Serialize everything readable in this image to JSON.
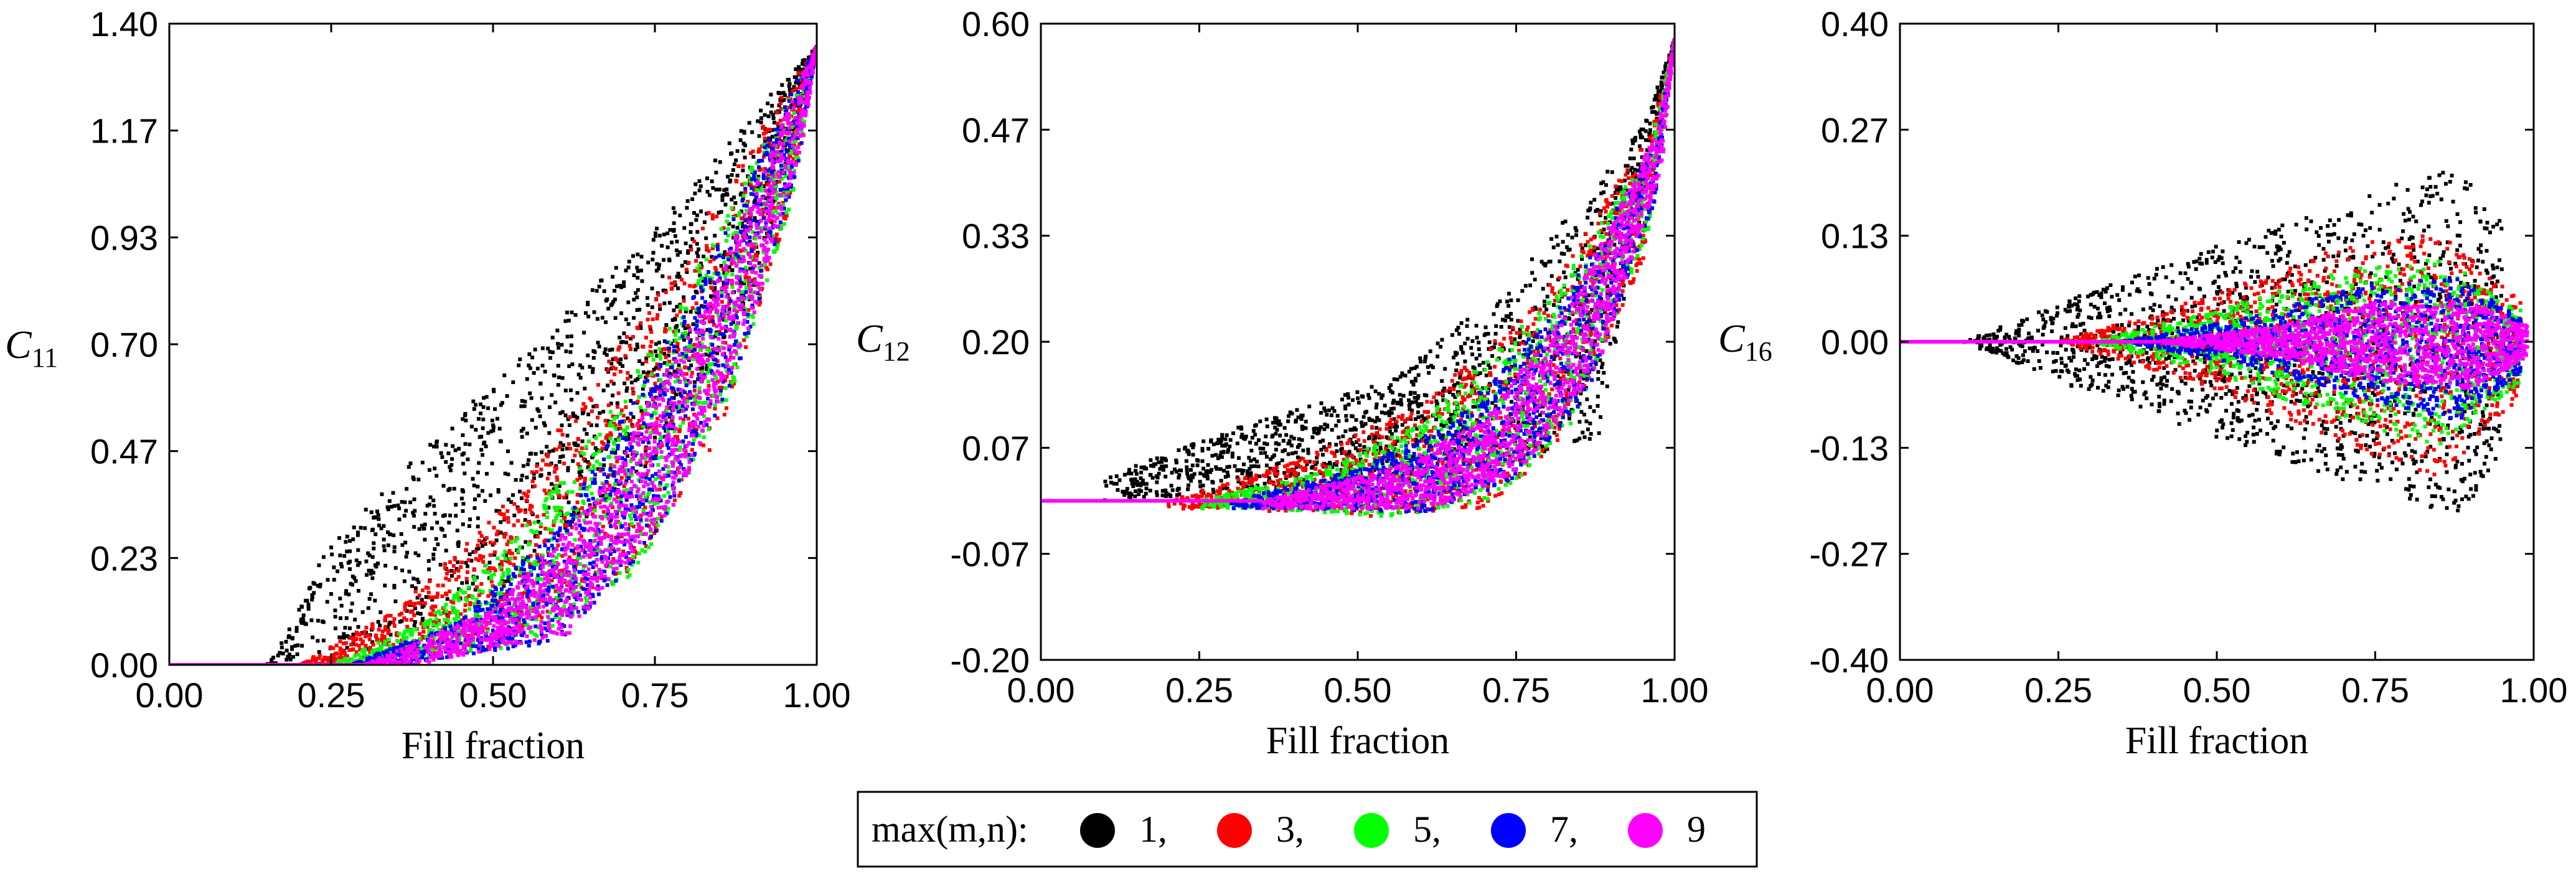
{
  "chart_data": [
    {
      "type": "scatter",
      "id": "c11",
      "ylabel": "C",
      "ylabel_sub": "11",
      "xlabel": "Fill fraction",
      "xlim": [
        0,
        1
      ],
      "ylim": [
        0,
        1.4
      ],
      "xticks": [
        "0.00",
        "0.25",
        "0.50",
        "0.75",
        "1.00"
      ],
      "yticks": [
        "0.00",
        "0.23",
        "0.47",
        "0.70",
        "0.93",
        "1.17",
        "1.40"
      ],
      "grid": false,
      "series": [
        {
          "name": "1",
          "upper": [
            [
              0.15,
              0.0
            ],
            [
              0.25,
              0.27
            ],
            [
              0.5,
              0.62
            ],
            [
              0.75,
              0.95
            ],
            [
              0.95,
              1.28
            ],
            [
              1.0,
              1.35
            ]
          ],
          "lower": [
            [
              0.15,
              0.0
            ],
            [
              0.3,
              0.03
            ],
            [
              0.5,
              0.15
            ],
            [
              0.75,
              0.45
            ],
            [
              0.9,
              0.8
            ],
            [
              1.0,
              1.35
            ]
          ]
        },
        {
          "name": "3",
          "upper": [
            [
              0.2,
              0.0
            ],
            [
              0.35,
              0.12
            ],
            [
              0.5,
              0.32
            ],
            [
              0.75,
              0.8
            ],
            [
              0.95,
              1.25
            ],
            [
              1.0,
              1.35
            ]
          ],
          "lower": [
            [
              0.25,
              0.0
            ],
            [
              0.5,
              0.04
            ],
            [
              0.7,
              0.18
            ],
            [
              0.85,
              0.5
            ],
            [
              0.95,
              0.95
            ],
            [
              1.0,
              1.35
            ]
          ]
        },
        {
          "name": "5",
          "upper": [
            [
              0.25,
              0.0
            ],
            [
              0.4,
              0.1
            ],
            [
              0.55,
              0.3
            ],
            [
              0.75,
              0.7
            ],
            [
              0.95,
              1.22
            ],
            [
              1.0,
              1.35
            ]
          ],
          "lower": [
            [
              0.3,
              0.0
            ],
            [
              0.55,
              0.04
            ],
            [
              0.72,
              0.2
            ],
            [
              0.86,
              0.55
            ],
            [
              0.96,
              1.0
            ],
            [
              1.0,
              1.35
            ]
          ]
        },
        {
          "name": "7",
          "upper": [
            [
              0.28,
              0.0
            ],
            [
              0.45,
              0.1
            ],
            [
              0.6,
              0.3
            ],
            [
              0.8,
              0.78
            ],
            [
              0.96,
              1.25
            ],
            [
              1.0,
              1.35
            ]
          ],
          "lower": [
            [
              0.35,
              0.0
            ],
            [
              0.6,
              0.05
            ],
            [
              0.74,
              0.25
            ],
            [
              0.88,
              0.65
            ],
            [
              0.97,
              1.08
            ],
            [
              1.0,
              1.35
            ]
          ]
        },
        {
          "name": "9",
          "upper": [
            [
              0.3,
              0.0
            ],
            [
              0.5,
              0.12
            ],
            [
              0.65,
              0.35
            ],
            [
              0.85,
              0.85
            ],
            [
              0.97,
              1.27
            ],
            [
              1.0,
              1.35
            ]
          ],
          "lower": [
            [
              0.38,
              0.0
            ],
            [
              0.62,
              0.07
            ],
            [
              0.78,
              0.35
            ],
            [
              0.9,
              0.75
            ],
            [
              0.98,
              1.15
            ],
            [
              1.0,
              1.35
            ]
          ]
        }
      ]
    },
    {
      "type": "scatter",
      "id": "c12",
      "ylabel": "C",
      "ylabel_sub": "12",
      "xlabel": "Fill fraction",
      "xlim": [
        0,
        1
      ],
      "ylim": [
        -0.2,
        0.6
      ],
      "xticks": [
        "0.00",
        "0.25",
        "0.50",
        "0.75",
        "1.00"
      ],
      "yticks": [
        "-0.20",
        "-0.07",
        "0.07",
        "0.20",
        "0.33",
        "0.47",
        "0.60"
      ],
      "grid": false,
      "series": [
        {
          "name": "1",
          "upper": [
            [
              0.1,
              0.03
            ],
            [
              0.3,
              0.09
            ],
            [
              0.55,
              0.15
            ],
            [
              0.75,
              0.28
            ],
            [
              0.95,
              0.47
            ],
            [
              1.0,
              0.58
            ]
          ],
          "lower": [
            [
              0.1,
              0.0
            ],
            [
              0.3,
              0.01
            ],
            [
              0.55,
              0.03
            ],
            [
              0.75,
              0.05
            ],
            [
              0.88,
              0.08
            ],
            [
              1.0,
              0.58
            ]
          ]
        },
        {
          "name": "3",
          "upper": [
            [
              0.2,
              0.0
            ],
            [
              0.4,
              0.05
            ],
            [
              0.6,
              0.12
            ],
            [
              0.8,
              0.27
            ],
            [
              0.96,
              0.46
            ],
            [
              1.0,
              0.58
            ]
          ],
          "lower": [
            [
              0.3,
              -0.01
            ],
            [
              0.5,
              -0.02
            ],
            [
              0.7,
              -0.01
            ],
            [
              0.82,
              0.07
            ],
            [
              0.95,
              0.3
            ],
            [
              1.0,
              0.58
            ]
          ]
        },
        {
          "name": "5",
          "upper": [
            [
              0.25,
              0.0
            ],
            [
              0.45,
              0.04
            ],
            [
              0.6,
              0.1
            ],
            [
              0.8,
              0.25
            ],
            [
              0.96,
              0.44
            ],
            [
              1.0,
              0.58
            ]
          ],
          "lower": [
            [
              0.35,
              -0.01
            ],
            [
              0.55,
              -0.02
            ],
            [
              0.72,
              0.0
            ],
            [
              0.84,
              0.1
            ],
            [
              0.96,
              0.34
            ],
            [
              1.0,
              0.58
            ]
          ]
        },
        {
          "name": "7",
          "upper": [
            [
              0.3,
              0.0
            ],
            [
              0.5,
              0.04
            ],
            [
              0.65,
              0.1
            ],
            [
              0.82,
              0.25
            ],
            [
              0.97,
              0.45
            ],
            [
              1.0,
              0.58
            ]
          ],
          "lower": [
            [
              0.4,
              -0.01
            ],
            [
              0.6,
              -0.015
            ],
            [
              0.74,
              0.02
            ],
            [
              0.86,
              0.13
            ],
            [
              0.97,
              0.38
            ],
            [
              1.0,
              0.58
            ]
          ]
        },
        {
          "name": "9",
          "upper": [
            [
              0.35,
              0.0
            ],
            [
              0.55,
              0.04
            ],
            [
              0.7,
              0.1
            ],
            [
              0.85,
              0.27
            ],
            [
              0.97,
              0.46
            ],
            [
              1.0,
              0.58
            ]
          ],
          "lower": [
            [
              0.45,
              -0.01
            ],
            [
              0.62,
              -0.01
            ],
            [
              0.76,
              0.04
            ],
            [
              0.88,
              0.17
            ],
            [
              0.98,
              0.42
            ],
            [
              1.0,
              0.58
            ]
          ]
        }
      ]
    },
    {
      "type": "scatter",
      "id": "c16",
      "ylabel": "C",
      "ylabel_sub": "16",
      "xlabel": "Fill fraction",
      "xlim": [
        0,
        1
      ],
      "ylim": [
        -0.4,
        0.4
      ],
      "xticks": [
        "0.00",
        "0.25",
        "0.50",
        "0.75",
        "1.00"
      ],
      "yticks": [
        "-0.40",
        "-0.27",
        "-0.13",
        "0.00",
        "0.13",
        "0.27",
        "0.40"
      ],
      "grid": false,
      "series": [
        {
          "name": "1",
          "upper": [
            [
              0.1,
              0.0
            ],
            [
              0.25,
              0.05
            ],
            [
              0.5,
              0.12
            ],
            [
              0.75,
              0.19
            ],
            [
              0.88,
              0.22
            ],
            [
              0.95,
              0.15
            ]
          ],
          "lower": [
            [
              0.1,
              0.0
            ],
            [
              0.25,
              -0.05
            ],
            [
              0.5,
              -0.12
            ],
            [
              0.75,
              -0.19
            ],
            [
              0.88,
              -0.22
            ],
            [
              0.95,
              -0.15
            ]
          ]
        },
        {
          "name": "3",
          "upper": [
            [
              0.25,
              0.0
            ],
            [
              0.5,
              0.06
            ],
            [
              0.7,
              0.12
            ],
            [
              0.85,
              0.14
            ],
            [
              0.98,
              0.05
            ]
          ],
          "lower": [
            [
              0.25,
              0.0
            ],
            [
              0.5,
              -0.06
            ],
            [
              0.7,
              -0.13
            ],
            [
              0.85,
              -0.17
            ],
            [
              0.98,
              -0.07
            ]
          ]
        },
        {
          "name": "5",
          "upper": [
            [
              0.3,
              0.0
            ],
            [
              0.5,
              0.04
            ],
            [
              0.7,
              0.09
            ],
            [
              0.85,
              0.11
            ],
            [
              0.98,
              0.04
            ]
          ],
          "lower": [
            [
              0.3,
              0.0
            ],
            [
              0.5,
              -0.04
            ],
            [
              0.7,
              -0.1
            ],
            [
              0.85,
              -0.13
            ],
            [
              0.98,
              -0.05
            ]
          ]
        },
        {
          "name": "7",
          "upper": [
            [
              0.35,
              0.0
            ],
            [
              0.55,
              0.03
            ],
            [
              0.72,
              0.07
            ],
            [
              0.88,
              0.08
            ],
            [
              0.98,
              0.03
            ]
          ],
          "lower": [
            [
              0.35,
              0.0
            ],
            [
              0.55,
              -0.03
            ],
            [
              0.72,
              -0.07
            ],
            [
              0.88,
              -0.1
            ],
            [
              0.98,
              -0.04
            ]
          ]
        },
        {
          "name": "9",
          "upper": [
            [
              0.4,
              0.0
            ],
            [
              0.6,
              0.02
            ],
            [
              0.75,
              0.05
            ],
            [
              0.9,
              0.05
            ],
            [
              0.99,
              0.02
            ]
          ],
          "lower": [
            [
              0.4,
              0.0
            ],
            [
              0.6,
              -0.02
            ],
            [
              0.75,
              -0.05
            ],
            [
              0.9,
              -0.06
            ],
            [
              0.99,
              -0.02
            ]
          ]
        }
      ]
    }
  ],
  "legend": {
    "title": "max(m,n):",
    "items": [
      {
        "label": "1,",
        "color": "#000000"
      },
      {
        "label": "3,",
        "color": "#ff0000"
      },
      {
        "label": "5,",
        "color": "#00ff00"
      },
      {
        "label": "7,",
        "color": "#0000ff"
      },
      {
        "label": "9",
        "color": "#ff00ff"
      }
    ]
  }
}
